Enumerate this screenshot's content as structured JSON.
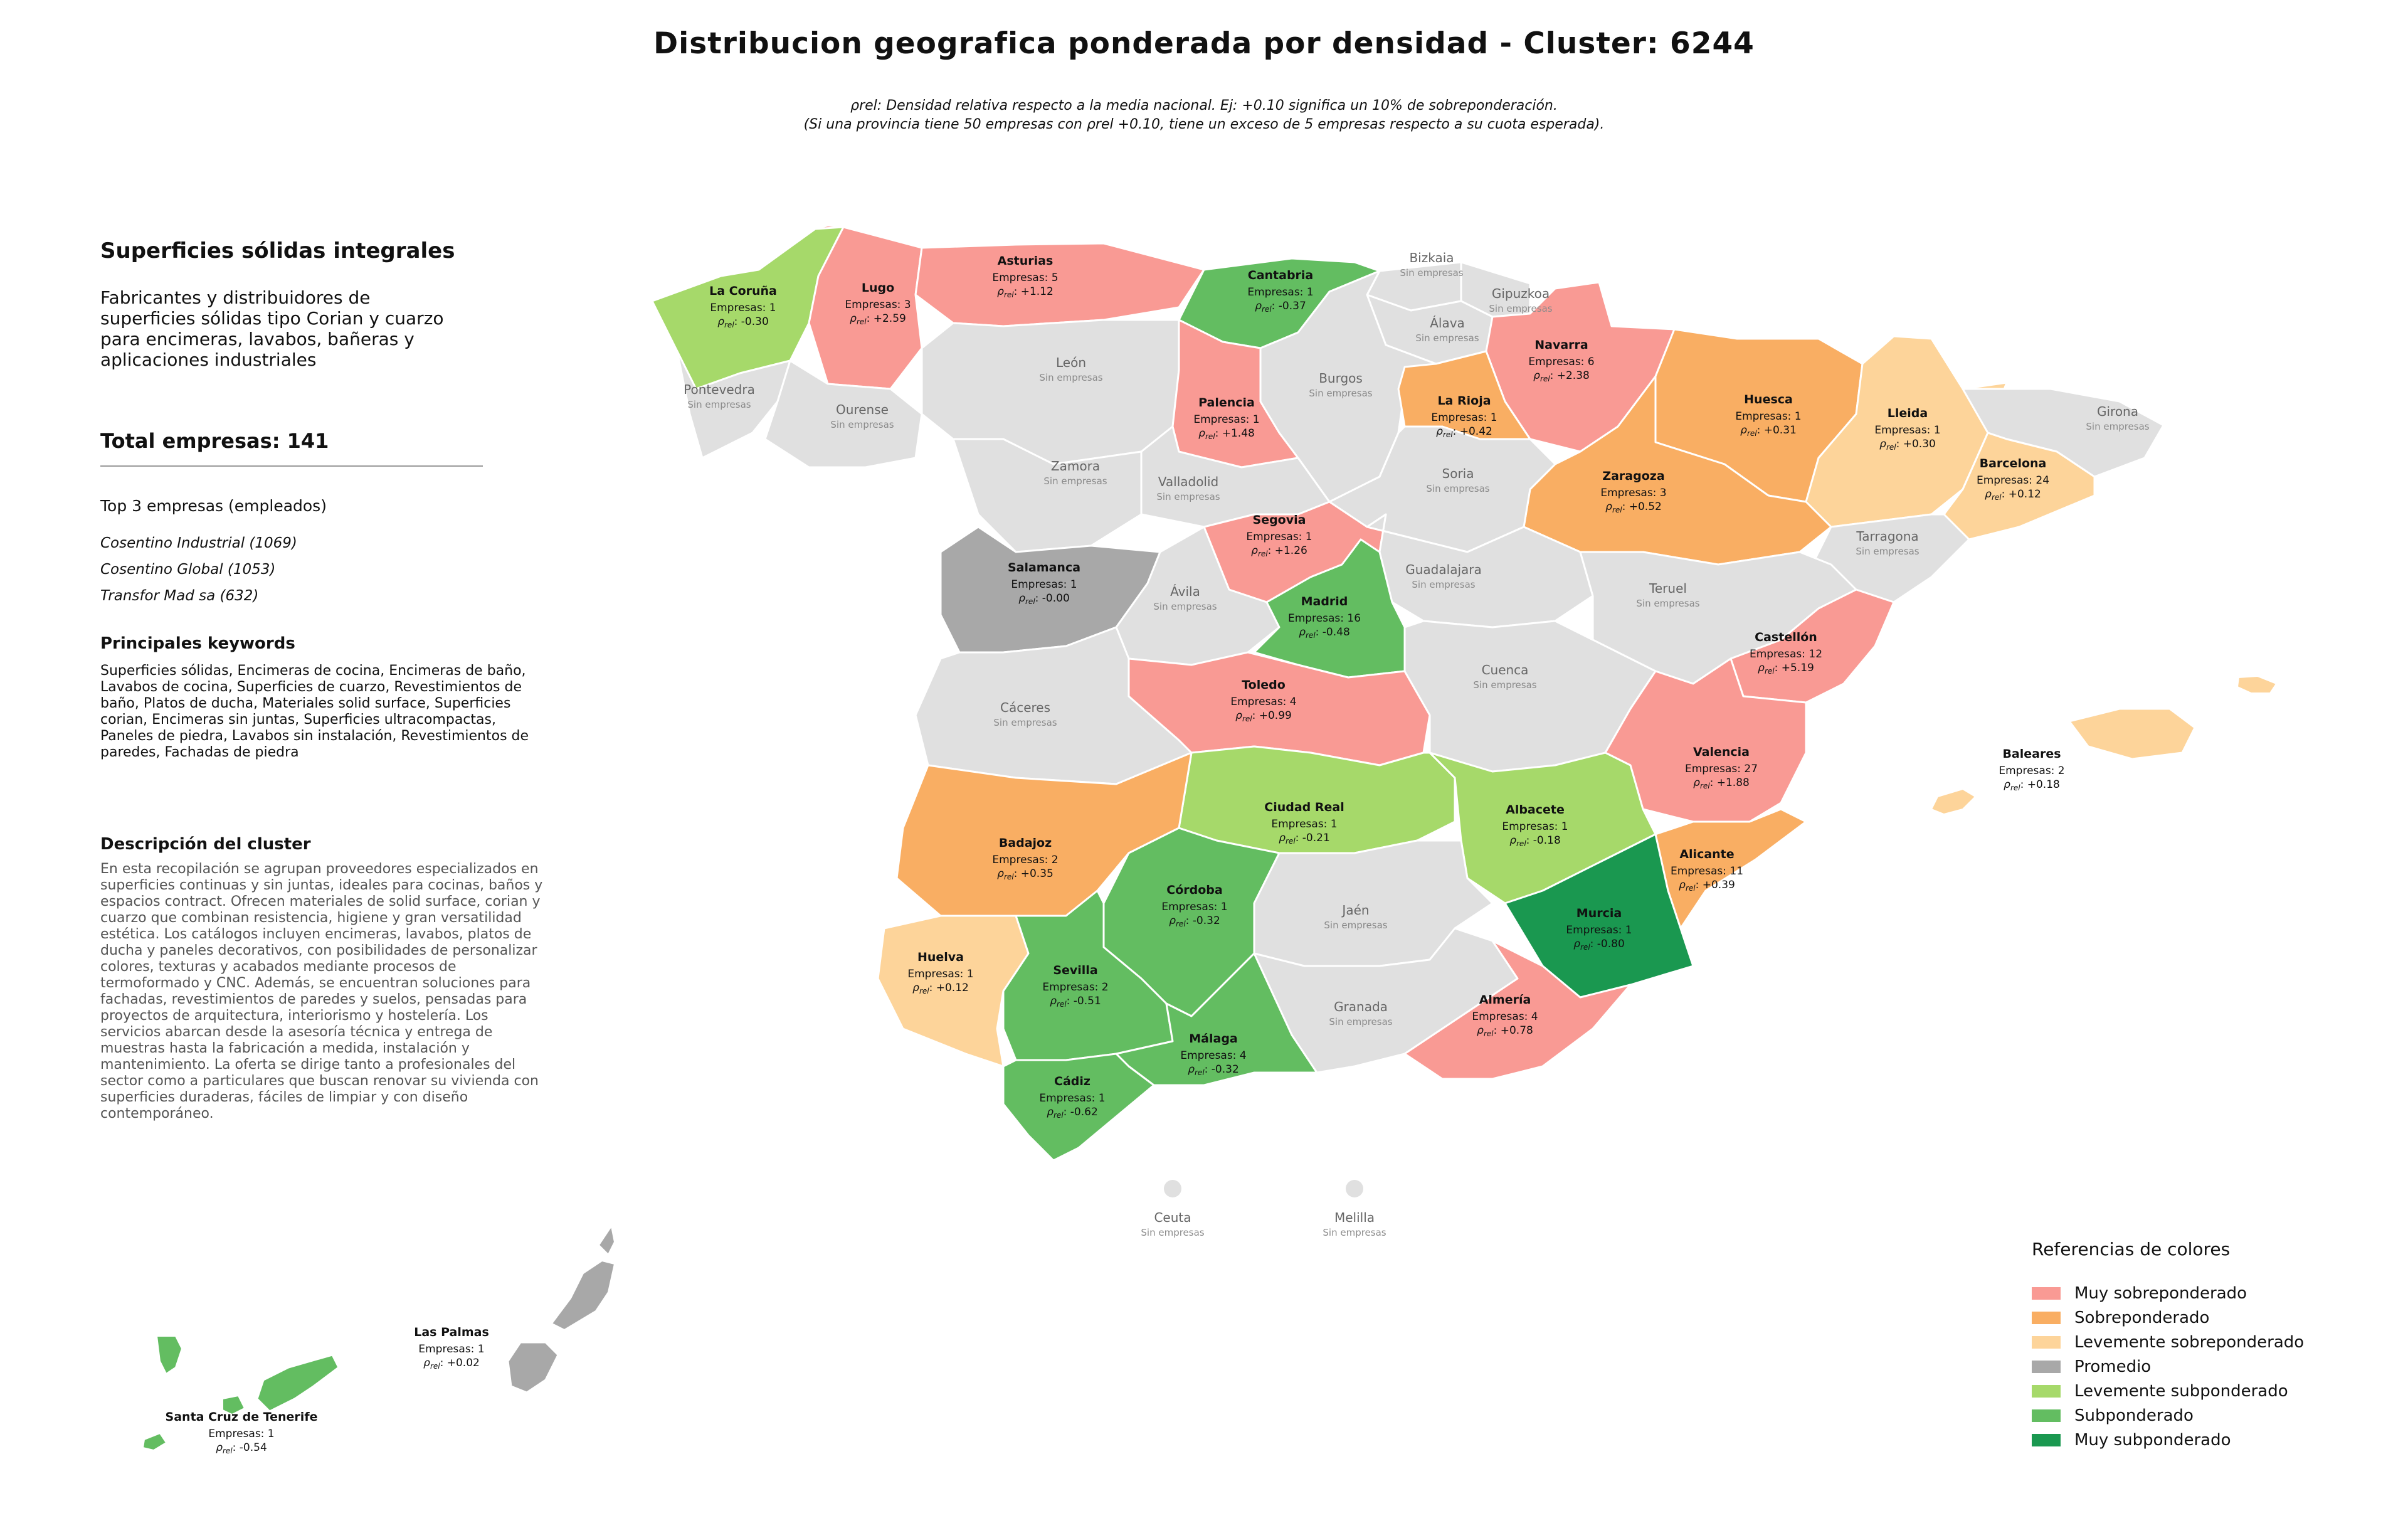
{
  "title": "Distribucion geografica ponderada por densidad - Cluster: 6244",
  "subtitle": {
    "line1": "ρrel: Densidad relativa respecto a la media nacional. Ej: +0.10 significa un 10% de sobreponderación.",
    "line2": "(Si una provincia tiene 50 empresas con ρrel +0.10, tiene un exceso de 5 empresas respecto a su cuota esperada)."
  },
  "sidebar": {
    "heading": "Superficies sólidas integrales",
    "description": "Fabricantes y distribuidores de superficies sólidas tipo Corian y cuarzo para encimeras, lavabos, bañeras y aplicaciones industriales",
    "total": "Total empresas: 141",
    "top_heading": "Top 3 empresas (empleados)",
    "top_companies": [
      "Cosentino Industrial (1069)",
      "Cosentino Global (1053)",
      "Transfor Mad sa (632)"
    ],
    "keywords_heading": "Principales keywords",
    "keywords": "Superficies sólidas, Encimeras de cocina, Encimeras de baño, Lavabos de cocina, Superficies de cuarzo, Revestimientos de baño, Platos de ducha, Materiales solid surface, Superficies corian, Encimeras sin juntas, Superficies ultracompactas, Paneles de piedra, Lavabos sin instalación, Revestimientos de paredes, Fachadas de piedra",
    "cluster_heading": "Descripción del cluster",
    "cluster_text": "En esta recopilación se agrupan proveedores especializados en superficies continuas y sin juntas, ideales para cocinas, baños y espacios contract. Ofrecen materiales de solid surface, corian y cuarzo que combinan resistencia, higiene y gran versatilidad estética. Los catálogos incluyen encimeras, lavabos, platos de ducha y paneles decorativos, con posibilidades de personalizar colores, texturas y acabados mediante procesos de termoformado y CNC. Además, se encuentran soluciones para fachadas, revestimientos de paredes y suelos, pensadas para proyectos de arquitectura, interiorismo y hostelería. Los servicios abarcan desde la asesoría técnica y entrega de muestras hasta la fabricación a medida, instalación y mantenimiento. La oferta se dirige tanto a profesionales del sector como a particulares que buscan renovar su vivienda con superficies duraderas, fáciles de limpiar y con diseño contemporáneo."
  },
  "colors": {
    "muy_sobre": "#f99a94",
    "sobre": "#f9ae63",
    "leve_sobre": "#fdd49a",
    "promedio": "#a8a8a8",
    "leve_sub": "#a6d96a",
    "sub": "#63bd61",
    "muy_sub": "#1a9850",
    "none": "#e0e0e0"
  },
  "empty_label": "Sin empresas",
  "rho_prefix": "ρrel: ",
  "regions": [
    {
      "name": "La Coruña",
      "count": "Empresas: 1",
      "rho": "-0.30",
      "cat": "leve_sub"
    },
    {
      "name": "Lugo",
      "count": "Empresas: 3",
      "rho": "+2.59",
      "cat": "muy_sobre"
    },
    {
      "name": "Asturias",
      "count": "Empresas: 5",
      "rho": "+1.12",
      "cat": "muy_sobre"
    },
    {
      "name": "Cantabria",
      "count": "Empresas: 1",
      "rho": "-0.37",
      "cat": "sub"
    },
    {
      "name": "Bizkaia",
      "cat": "none"
    },
    {
      "name": "Gipuzkoa",
      "cat": "none"
    },
    {
      "name": "Álava",
      "cat": "none"
    },
    {
      "name": "Navarra",
      "count": "Empresas: 6",
      "rho": "+2.38",
      "cat": "muy_sobre"
    },
    {
      "name": "Huesca",
      "count": "Empresas: 1",
      "rho": "+0.31",
      "cat": "sobre"
    },
    {
      "name": "Lleida",
      "count": "Empresas: 1",
      "rho": "+0.30",
      "cat": "leve_sobre"
    },
    {
      "name": "Girona",
      "cat": "none"
    },
    {
      "name": "Barcelona",
      "count": "Empresas: 24",
      "rho": "+0.12",
      "cat": "leve_sobre"
    },
    {
      "name": "Pontevedra",
      "cat": "none"
    },
    {
      "name": "Ourense",
      "cat": "none"
    },
    {
      "name": "León",
      "cat": "none"
    },
    {
      "name": "Palencia",
      "count": "Empresas: 1",
      "rho": "+1.48",
      "cat": "muy_sobre"
    },
    {
      "name": "Burgos",
      "cat": "none"
    },
    {
      "name": "La Rioja",
      "count": "Empresas: 1",
      "rho": "+0.42",
      "cat": "sobre"
    },
    {
      "name": "Zaragoza",
      "count": "Empresas: 3",
      "rho": "+0.52",
      "cat": "sobre"
    },
    {
      "name": "Zamora",
      "cat": "none"
    },
    {
      "name": "Valladolid",
      "cat": "none"
    },
    {
      "name": "Soria",
      "cat": "none"
    },
    {
      "name": "Tarragona",
      "cat": "none"
    },
    {
      "name": "Salamanca",
      "count": "Empresas: 1",
      "rho": "-0.00",
      "cat": "promedio"
    },
    {
      "name": "Segovia",
      "count": "Empresas: 1",
      "rho": "+1.26",
      "cat": "muy_sobre"
    },
    {
      "name": "Ávila",
      "cat": "none"
    },
    {
      "name": "Guadalajara",
      "cat": "none"
    },
    {
      "name": "Teruel",
      "cat": "none"
    },
    {
      "name": "Madrid",
      "count": "Empresas: 16",
      "rho": "-0.48",
      "cat": "sub"
    },
    {
      "name": "Castellón",
      "count": "Empresas: 12",
      "rho": "+5.19",
      "cat": "muy_sobre"
    },
    {
      "name": "Cáceres",
      "cat": "none"
    },
    {
      "name": "Toledo",
      "count": "Empresas: 4",
      "rho": "+0.99",
      "cat": "muy_sobre"
    },
    {
      "name": "Cuenca",
      "cat": "none"
    },
    {
      "name": "Valencia",
      "count": "Empresas: 27",
      "rho": "+1.88",
      "cat": "muy_sobre"
    },
    {
      "name": "Baleares",
      "count": "Empresas: 2",
      "rho": "+0.18",
      "cat": "leve_sobre"
    },
    {
      "name": "Ciudad Real",
      "count": "Empresas: 1",
      "rho": "-0.21",
      "cat": "leve_sub"
    },
    {
      "name": "Albacete",
      "count": "Empresas: 1",
      "rho": "-0.18",
      "cat": "leve_sub"
    },
    {
      "name": "Badajoz",
      "count": "Empresas: 2",
      "rho": "+0.35",
      "cat": "sobre"
    },
    {
      "name": "Alicante",
      "count": "Empresas: 11",
      "rho": "+0.39",
      "cat": "sobre"
    },
    {
      "name": "Córdoba",
      "count": "Empresas: 1",
      "rho": "-0.32",
      "cat": "sub"
    },
    {
      "name": "Jaén",
      "cat": "none"
    },
    {
      "name": "Murcia",
      "count": "Empresas: 1",
      "rho": "-0.80",
      "cat": "muy_sub"
    },
    {
      "name": "Huelva",
      "count": "Empresas: 1",
      "rho": "+0.12",
      "cat": "leve_sobre"
    },
    {
      "name": "Sevilla",
      "count": "Empresas: 2",
      "rho": "-0.51",
      "cat": "sub"
    },
    {
      "name": "Granada",
      "cat": "none"
    },
    {
      "name": "Almería",
      "count": "Empresas: 4",
      "rho": "+0.78",
      "cat": "muy_sobre"
    },
    {
      "name": "Málaga",
      "count": "Empresas: 4",
      "rho": "-0.32",
      "cat": "sub"
    },
    {
      "name": "Cádiz",
      "count": "Empresas: 1",
      "rho": "-0.62",
      "cat": "sub"
    },
    {
      "name": "Ceuta",
      "cat": "none"
    },
    {
      "name": "Melilla",
      "cat": "none"
    },
    {
      "name": "Las Palmas",
      "count": "Empresas: 1",
      "rho": "+0.02",
      "cat": "promedio"
    },
    {
      "name": "Santa Cruz de Tenerife",
      "count": "Empresas: 1",
      "rho": "-0.54",
      "cat": "sub"
    }
  ],
  "legend": {
    "title": "Referencias de colores",
    "items": [
      {
        "label": "Muy sobreponderado",
        "cat": "muy_sobre"
      },
      {
        "label": "Sobreponderado",
        "cat": "sobre"
      },
      {
        "label": "Levemente sobreponderado",
        "cat": "leve_sobre"
      },
      {
        "label": "Promedio",
        "cat": "promedio"
      },
      {
        "label": "Levemente subponderado",
        "cat": "leve_sub"
      },
      {
        "label": "Subponderado",
        "cat": "sub"
      },
      {
        "label": "Muy subponderado",
        "cat": "muy_sub"
      }
    ]
  }
}
